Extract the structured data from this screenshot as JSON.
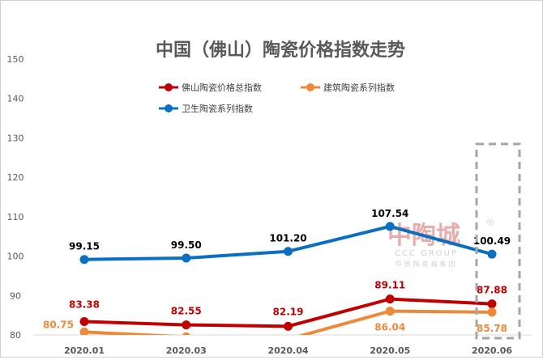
{
  "chart_data": {
    "type": "line",
    "title": "中国（佛山）陶瓷价格指数走势",
    "categories": [
      "2020.01",
      "2020.03",
      "2020.04",
      "2020.05",
      "2020.06"
    ],
    "ylim": [
      80,
      150
    ],
    "yticks": [
      80,
      90,
      100,
      110,
      120,
      130,
      140,
      150
    ],
    "grid": false,
    "legend": "top",
    "series": [
      {
        "name": "佛山陶瓷价格总指数",
        "color": "#c00000",
        "values": [
          83.38,
          82.55,
          82.19,
          89.11,
          87.88
        ],
        "labels": [
          "83.38",
          "82.55",
          "82.19",
          "89.11",
          "87.88"
        ]
      },
      {
        "name": "建筑陶瓷系列指数",
        "color": "#ed8a3a",
        "values": [
          80.75,
          79.5,
          78.9,
          86.04,
          85.78
        ],
        "labels": [
          "80.75",
          "",
          "",
          "86.04",
          "85.78"
        ]
      },
      {
        "name": "卫生陶瓷系列指数",
        "color": "#0a6fc2",
        "values": [
          99.15,
          99.5,
          101.2,
          107.54,
          100.49
        ],
        "labels": [
          "99.15",
          "99.50",
          "101.20",
          "107.54",
          "100.49"
        ]
      }
    ],
    "highlight_category": "2020.06"
  },
  "watermark": {
    "main": "中陶城",
    "sub": "CCC GROUP",
    "sub2": "中国陶瓷城集团",
    "mark": "®"
  }
}
